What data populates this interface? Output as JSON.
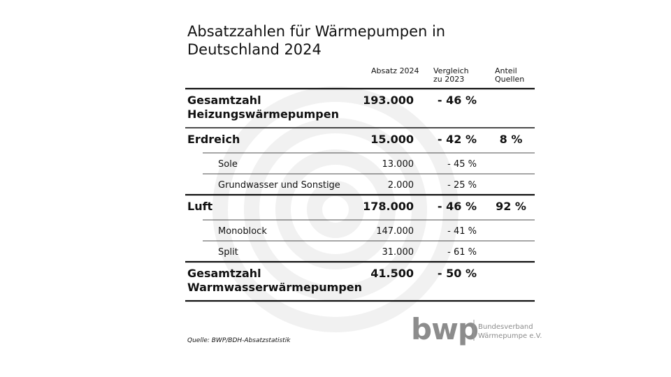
{
  "title": [
    "Absatzzahlen für Wärmepumpen in",
    "Deutschland 2024"
  ],
  "table": {
    "columns": [
      [
        "Absatz 2024"
      ],
      [
        "Vergleich",
        "zu 2023"
      ],
      [
        "Anteil",
        "Quellen"
      ]
    ],
    "groups": [
      {
        "label": [
          "Gesamtzahl",
          "Heizungswärmepumpen"
        ],
        "absatz": "193.000",
        "vergleich": "- 46 %",
        "anteil": null,
        "subrows": []
      },
      {
        "label": [
          "Erdreich"
        ],
        "absatz": "15.000",
        "vergleich": "- 42 %",
        "anteil": "8 %",
        "subrows": [
          {
            "label": "Sole",
            "absatz": "13.000",
            "vergleich": "- 45 %"
          },
          {
            "label": "Grundwasser und Sonstige",
            "absatz": "2.000",
            "vergleich": "- 25 %"
          }
        ]
      },
      {
        "label": [
          "Luft"
        ],
        "absatz": "178.000",
        "vergleich": "- 46 %",
        "anteil": "92 %",
        "subrows": [
          {
            "label": "Monoblock",
            "absatz": "147.000",
            "vergleich": "- 41 %"
          },
          {
            "label": "Split",
            "absatz": "31.000",
            "vergleich": "- 61 %"
          }
        ]
      },
      {
        "label": [
          "Gesamtzahl",
          "Warmwasserwärmepumpen"
        ],
        "absatz": "41.500",
        "vergleich": "- 50 %",
        "anteil": null,
        "subrows": []
      }
    ]
  },
  "source": "Quelle: BWP/BDH-Absatzstatistik",
  "logo": {
    "name": "bwp",
    "lines": [
      "Bundesverband",
      "Wärmepumpe e.V."
    ]
  }
}
